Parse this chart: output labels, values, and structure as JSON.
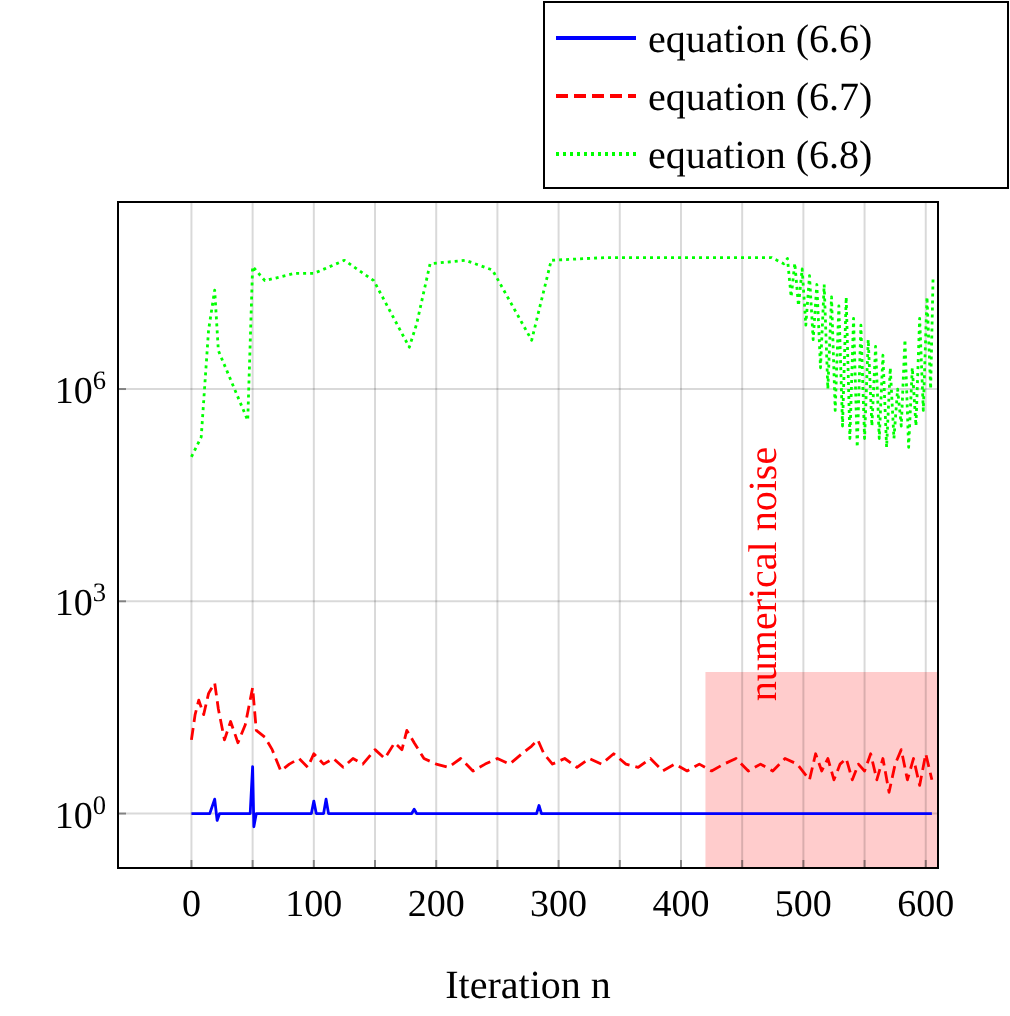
{
  "chart_data": {
    "type": "line",
    "xlabel": "Iteration n",
    "log": "y",
    "grid": true,
    "legend": "top right",
    "xlim": [
      -60,
      610
    ],
    "ylim": [
      0.17,
      440000000
    ],
    "xticks": [
      0,
      {
        "value": 50,
        "label": null
      },
      100,
      {
        "value": 150,
        "label": null
      },
      200,
      {
        "value": 250,
        "label": null
      },
      300,
      {
        "value": 350,
        "label": null
      },
      400,
      {
        "value": 450,
        "label": null
      },
      500,
      {
        "value": 550,
        "label": null
      },
      600
    ],
    "yticks": [
      {
        "value": 1,
        "label": "10$^{0}$"
      },
      {
        "value": 1000,
        "label": "10$^{3}$"
      },
      {
        "value": 1000000,
        "label": "10$^{6}$"
      }
    ],
    "annotations": [
      "numerical noise"
    ],
    "series": [
      {
        "type": "area",
        "color": "#ffcccc",
        "x": [
          420,
          610
        ],
        "values": [
          100,
          100
        ]
      },
      {
        "name": "equation (6.6)",
        "color": "#0000ff",
        "line_style": "solid",
        "x": [
          0,
          15,
          19,
          21,
          23,
          48,
          50,
          51,
          53,
          98,
          100,
          102,
          108,
          110,
          112,
          180,
          182,
          184,
          282,
          284,
          286,
          605
        ],
        "values": [
          1,
          1,
          1.6,
          0.8,
          1,
          1,
          4.6,
          0.65,
          1,
          1,
          1.5,
          1,
          1,
          1.6,
          1,
          1,
          1.15,
          1,
          1,
          1.3,
          1,
          1
        ]
      },
      {
        "name": "equation (6.7)",
        "color": "#ff0000",
        "line_style": "dashed",
        "x": [
          0,
          3,
          6,
          10,
          14,
          19,
          22,
          27,
          32,
          38,
          44,
          50,
          53,
          60,
          66,
          73,
          80,
          88,
          95,
          100,
          108,
          116,
          124,
          132,
          140,
          150,
          158,
          166,
          172,
          176,
          182,
          190,
          200,
          210,
          220,
          230,
          240,
          250,
          260,
          270,
          278,
          283,
          288,
          295,
          305,
          315,
          325,
          335,
          345,
          355,
          365,
          375,
          385,
          395,
          405,
          415,
          425,
          435,
          445,
          455,
          465,
          475,
          485,
          495,
          505,
          510,
          515,
          520,
          525,
          530,
          535,
          540,
          545,
          550,
          555,
          560,
          565,
          570,
          575,
          580,
          585,
          590,
          595,
          600,
          605
        ],
        "values": [
          11,
          25,
          40,
          25,
          50,
          70,
          30,
          11,
          20,
          10,
          18,
          60,
          15,
          12,
          8,
          4,
          5,
          6,
          4.5,
          7,
          5,
          6,
          4.5,
          6,
          5,
          8,
          6,
          10,
          8,
          15,
          10,
          6,
          5,
          4.5,
          6,
          4,
          5,
          6,
          5,
          7,
          9,
          11,
          7,
          5,
          6,
          4.5,
          6,
          5,
          7,
          5,
          4.5,
          6,
          4,
          5,
          4,
          5,
          4,
          5,
          6,
          4,
          5,
          4,
          6,
          5,
          3,
          7,
          4,
          6,
          3,
          5,
          6,
          3,
          5,
          4,
          7,
          3,
          6,
          2,
          5,
          8,
          3,
          6,
          2.5,
          7,
          3
        ]
      },
      {
        "name": "equation (6.8)",
        "color": "#00ff00",
        "line_style": "dotted",
        "x": [
          0,
          8,
          14,
          19,
          22,
          46,
          50,
          60,
          84,
          100,
          125,
          149,
          178,
          184,
          195,
          224,
          246,
          278,
          294,
          338,
          400,
          474,
          484,
          487,
          490,
          493,
          496,
          499,
          502,
          505,
          508,
          511,
          514,
          517,
          520,
          523,
          526,
          529,
          532,
          535,
          538,
          541,
          544,
          547,
          550,
          553,
          556,
          559,
          562,
          565,
          568,
          571,
          574,
          577,
          580,
          583,
          586,
          589,
          592,
          595,
          598,
          601,
          604,
          606
        ],
        "values": [
          110000,
          210000,
          6800000,
          25000000,
          3500000,
          360000,
          54000000,
          34000000,
          43000000,
          43000000,
          66000000,
          34000000,
          3900000,
          8300000,
          59000000,
          66000000,
          48000000,
          4900000,
          66000000,
          72000000,
          72000000,
          72000000,
          59000000,
          70000000,
          20000000,
          60000000,
          15000000,
          50000000,
          8000000,
          40000000,
          5000000,
          30000000,
          2000000,
          30000000,
          1000000,
          20000000,
          500000,
          15000000,
          300000,
          20000000,
          200000,
          10000000,
          150000,
          8000000,
          200000,
          5000000,
          300000,
          4000000,
          200000,
          3000000,
          150000,
          2000000,
          200000,
          1000000,
          300000,
          5000000,
          150000,
          2000000,
          300000,
          10000000,
          500000,
          20000000,
          1000000,
          40000000
        ]
      }
    ]
  }
}
